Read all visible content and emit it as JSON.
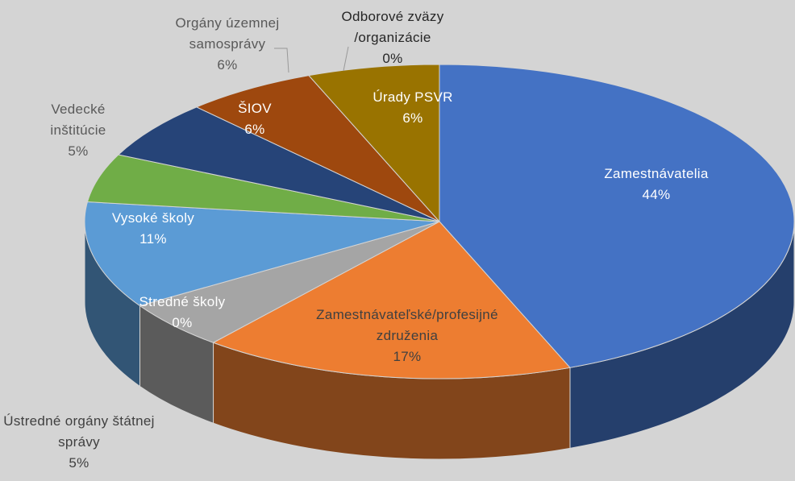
{
  "chart_data": {
    "type": "pie",
    "categories": [
      "Zamestnávatelia",
      "Zamestnávateľské/profesijné združenia",
      "Ústredné orgány štátnej správy",
      "Stredné školy",
      "Vysoké školy",
      "Vedecké inštitúcie",
      "ŠIOV",
      "Orgány územnej samosprávy",
      "Odborové zväzy /organizácie",
      "Úrady PSVR"
    ],
    "values": [
      44,
      17,
      5,
      0,
      11,
      5,
      6,
      6,
      0,
      6
    ],
    "value_labels": [
      "44%",
      "17%",
      "5%",
      "0%",
      "11%",
      "5%",
      "6%",
      "6%",
      "0%",
      "6%"
    ],
    "colors": [
      "#4472c4",
      "#ed7d31",
      "#a5a5a5",
      "#ffc000",
      "#5b9bd5",
      "#70ad47",
      "#264478",
      "#9e480e",
      "#636363",
      "#997300"
    ]
  }
}
